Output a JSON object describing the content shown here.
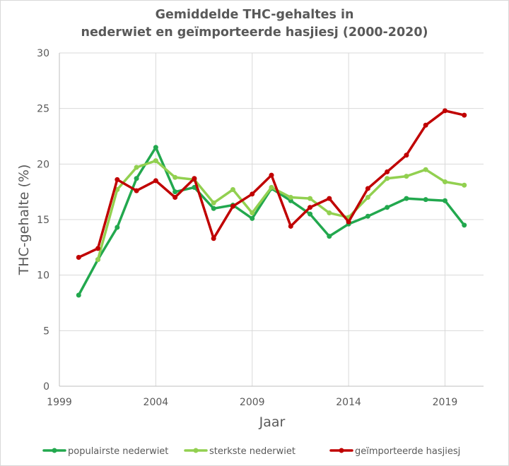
{
  "chart_data": {
    "type": "line",
    "title": [
      "Gemiddelde THC-gehaltes in",
      "nederwiet en geïmporteerde hasjiesj (2000-2020)"
    ],
    "xlabel": "Jaar",
    "ylabel": "THC-gehalte (%)",
    "xlim": [
      1999,
      2021
    ],
    "ylim": [
      0,
      30
    ],
    "xticks": [
      1999,
      2004,
      2009,
      2014,
      2019
    ],
    "yticks": [
      0,
      5,
      10,
      15,
      20,
      25,
      30
    ],
    "grid": true,
    "legend_position": "bottom",
    "x": [
      2000,
      2001,
      2002,
      2003,
      2004,
      2005,
      2006,
      2007,
      2008,
      2009,
      2010,
      2011,
      2012,
      2013,
      2014,
      2015,
      2016,
      2017,
      2018,
      2019,
      2020
    ],
    "series": [
      {
        "name": "populairste nederwiet",
        "color": "#22a84e",
        "values": [
          8.2,
          11.4,
          14.3,
          18.7,
          21.5,
          17.5,
          17.9,
          16.0,
          16.3,
          15.1,
          17.8,
          16.7,
          15.5,
          13.5,
          14.6,
          15.3,
          16.1,
          16.9,
          16.8,
          16.7,
          14.5
        ]
      },
      {
        "name": "sterkste nederwiet",
        "color": "#92d050",
        "values": [
          null,
          11.4,
          17.7,
          19.7,
          20.3,
          18.8,
          18.6,
          16.5,
          17.7,
          15.6,
          17.9,
          17.0,
          16.9,
          15.6,
          15.2,
          17.0,
          18.7,
          18.9,
          19.5,
          18.4,
          18.1
        ]
      },
      {
        "name": "geïmporteerde hasjiesj",
        "color": "#c00000",
        "values": [
          11.6,
          12.4,
          18.6,
          17.6,
          18.5,
          17.0,
          18.7,
          13.3,
          16.2,
          17.3,
          19.0,
          14.4,
          16.1,
          16.9,
          14.8,
          17.8,
          19.3,
          20.8,
          23.5,
          24.8,
          24.4
        ]
      }
    ]
  }
}
